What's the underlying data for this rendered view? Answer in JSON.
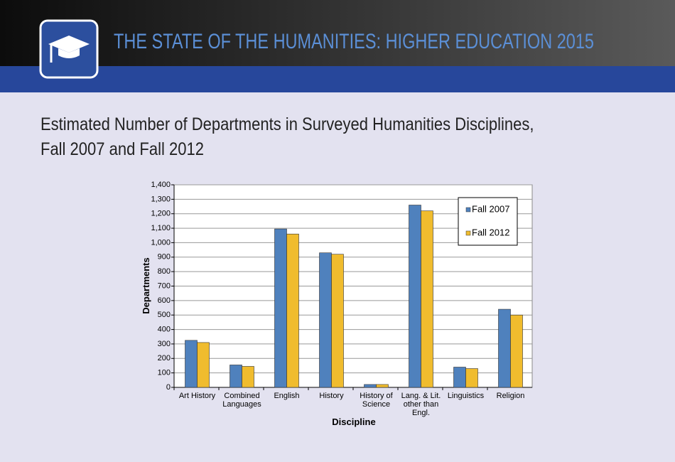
{
  "header": {
    "title": "THE STATE OF THE HUMANITIES: HIGHER EDUCATION 2015"
  },
  "chart_data": {
    "type": "bar",
    "title": "Estimated Number of Departments in Surveyed Humanities Disciplines,\nFall 2007 and Fall 2012",
    "x_label": "Discipline",
    "y_label": "Departments",
    "categories": [
      "Art History",
      "Combined\nLanguages",
      "English",
      "History",
      "History of\nScience",
      "Lang. & Lit.\nother than\nEngl.",
      "Linguistics",
      "Religion"
    ],
    "series": [
      {
        "name": "Fall 2007",
        "color": "#4f81bd",
        "values": [
          325,
          155,
          1095,
          930,
          20,
          1260,
          140,
          540
        ]
      },
      {
        "name": "Fall 2012",
        "color": "#f0bc2e",
        "values": [
          310,
          145,
          1060,
          920,
          20,
          1220,
          130,
          500
        ]
      }
    ],
    "ylim": [
      0,
      1400
    ],
    "yticks": [
      0,
      100,
      200,
      300,
      400,
      500,
      600,
      700,
      800,
      900,
      {
        "value": 1000,
        "label": "1,000"
      },
      {
        "value": 1100,
        "label": "1,100"
      },
      {
        "value": 1200,
        "label": "1,200"
      },
      {
        "value": 1300,
        "label": "1,300"
      },
      {
        "value": 1400,
        "label": "1,400"
      }
    ],
    "grid": true,
    "legend": "upper right"
  }
}
